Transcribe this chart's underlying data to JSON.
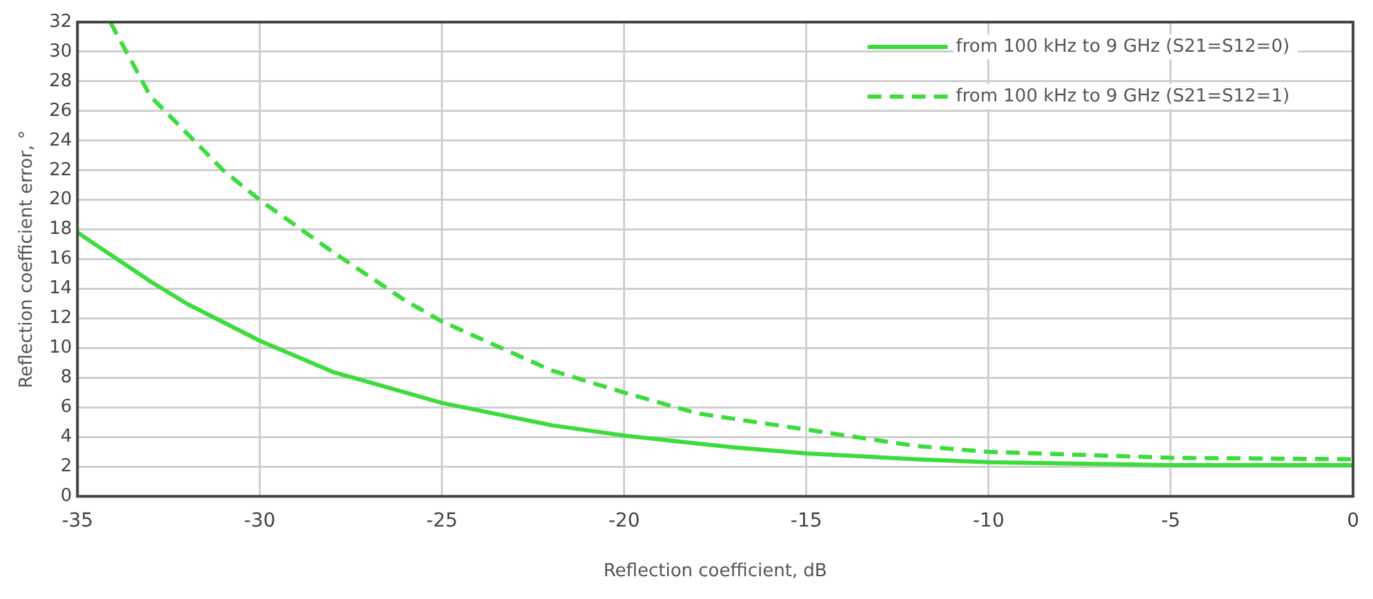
{
  "chart_data": {
    "type": "line",
    "xlabel": "Reflection coefficient, dB",
    "ylabel": "Reflection coefficient error, °",
    "xlim": [
      -35,
      0
    ],
    "xticks": [
      -35,
      -30,
      -25,
      -20,
      -15,
      -10,
      -5,
      0
    ],
    "ylim": [
      0,
      32
    ],
    "yticks": [
      0,
      2,
      4,
      6,
      8,
      10,
      12,
      14,
      16,
      18,
      20,
      22,
      24,
      26,
      28,
      30,
      32
    ],
    "grid": true,
    "legend": "top right",
    "marker": "none",
    "series": [
      {
        "name": "from 100 kHz to 9 GHz (S21=S12=0)",
        "color": "#3ddc3d",
        "line_style": "solid",
        "x": [
          -35,
          -33,
          -32,
          -30,
          -28,
          -25,
          -22,
          -20,
          -17,
          -15,
          -12,
          -10,
          -5,
          0
        ],
        "values": [
          17.8,
          14.5,
          13,
          10.5,
          8.4,
          6.3,
          4.8,
          4.1,
          3.3,
          2.9,
          2.5,
          2.3,
          2.1,
          2.1
        ]
      },
      {
        "name": "from 100 kHz to 9 GHz (S21=S12=1)",
        "color": "#3ddc3d",
        "line_style": "dashed",
        "x": [
          -34.1,
          -33,
          -32,
          -31,
          -30,
          -28,
          -26,
          -25,
          -22,
          -20,
          -18,
          -15,
          -12,
          -10,
          -5,
          0
        ],
        "values": [
          32,
          27,
          24.5,
          22,
          20,
          16.5,
          13.2,
          11.8,
          8.5,
          7,
          5.6,
          4.5,
          3.4,
          3,
          2.6,
          2.5
        ]
      }
    ]
  }
}
